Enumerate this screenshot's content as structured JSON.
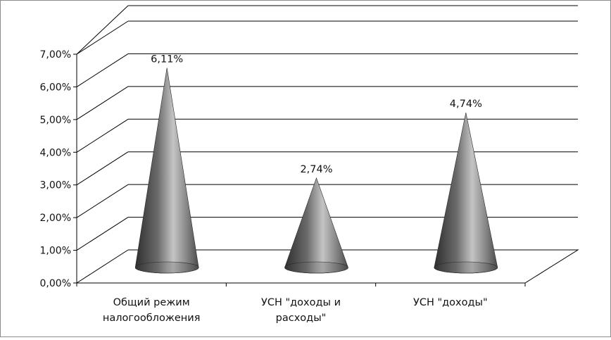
{
  "chart_data": {
    "type": "bar",
    "bar_shape": "cone",
    "view": "3d",
    "categories": [
      [
        "Общий режим",
        "налогообложения"
      ],
      [
        "УСН \"доходы и",
        "расходы\""
      ],
      [
        "УСН \"доходы\""
      ]
    ],
    "values": [
      6.11,
      2.74,
      4.74
    ],
    "data_labels": [
      "6,11%",
      "2,74%",
      "4,74%"
    ],
    "ylim": [
      0,
      7
    ],
    "y_ticks": [
      "0,00%",
      "1,00%",
      "2,00%",
      "3,00%",
      "4,00%",
      "5,00%",
      "6,00%",
      "7,00%"
    ],
    "grid": true,
    "legend": "none",
    "title": "",
    "xlabel": "",
    "ylabel": "",
    "colors": {
      "cone_dark": "#3a3a3a",
      "cone_light": "#c8c8c8",
      "grid": "#000000"
    }
  }
}
